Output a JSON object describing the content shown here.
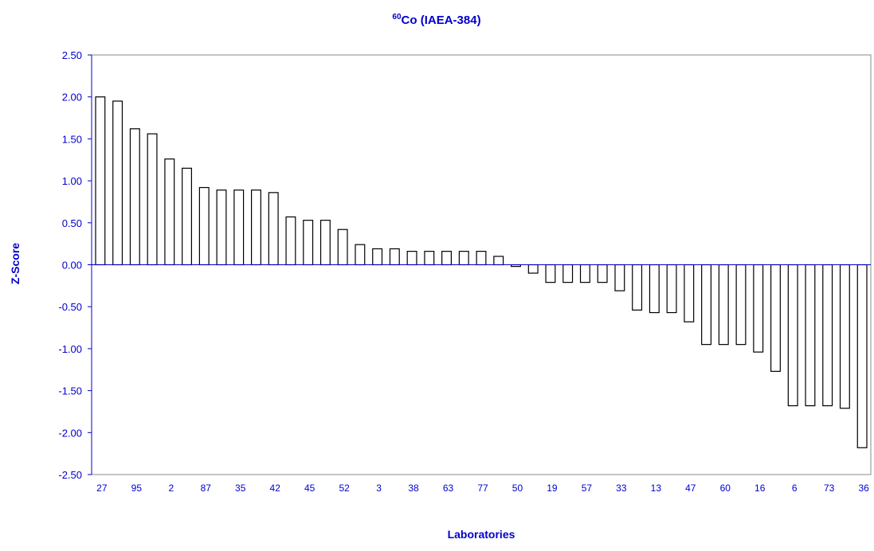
{
  "chart_data": {
    "type": "bar",
    "title_mass_number": "60",
    "title": "Co (IAEA-384)",
    "x_label": "Laboratories",
    "y_label": "Z-Score",
    "categories": [
      "27",
      null,
      "95",
      null,
      "2",
      null,
      "87",
      null,
      "35",
      null,
      "42",
      null,
      "45",
      null,
      "52",
      null,
      "3",
      null,
      "38",
      null,
      "63",
      null,
      "77",
      null,
      "50",
      null,
      "19",
      null,
      "57",
      null,
      "33",
      null,
      "13",
      null,
      "47",
      null,
      "60",
      null,
      "16",
      null,
      "6",
      null,
      "73",
      null,
      "36"
    ],
    "values": [
      2.0,
      1.95,
      1.62,
      1.56,
      1.26,
      1.15,
      0.92,
      0.89,
      0.89,
      0.89,
      0.86,
      0.57,
      0.53,
      0.53,
      0.42,
      0.24,
      0.19,
      0.19,
      0.16,
      0.16,
      0.16,
      0.16,
      0.16,
      0.1,
      -0.02,
      -0.1,
      -0.21,
      -0.21,
      -0.21,
      -0.21,
      -0.31,
      -0.54,
      -0.57,
      -0.57,
      -0.68,
      -0.95,
      -0.95,
      -0.95,
      -1.04,
      -1.27,
      -1.68,
      -1.68,
      -1.68,
      -1.71,
      -2.18
    ],
    "color": "#ffffff",
    "ylim": [
      -2.5,
      2.5
    ],
    "yticks": [
      {
        "value": 2.5,
        "label": "2.50"
      },
      {
        "value": 2,
        "label": "2.00"
      },
      {
        "value": 1.5,
        "label": "1.50"
      },
      {
        "value": 1,
        "label": "1.00"
      },
      {
        "value": 0.5,
        "label": "0.50"
      },
      {
        "value": 0,
        "label": "0.00"
      },
      {
        "value": -0.5,
        "label": "-0.50"
      },
      {
        "value": -1,
        "label": "-1.00"
      },
      {
        "value": -1.5,
        "label": "-1.50"
      },
      {
        "value": -2,
        "label": "-2.00"
      },
      {
        "value": -2.5,
        "label": "-2.50"
      }
    ],
    "grid": false
  }
}
